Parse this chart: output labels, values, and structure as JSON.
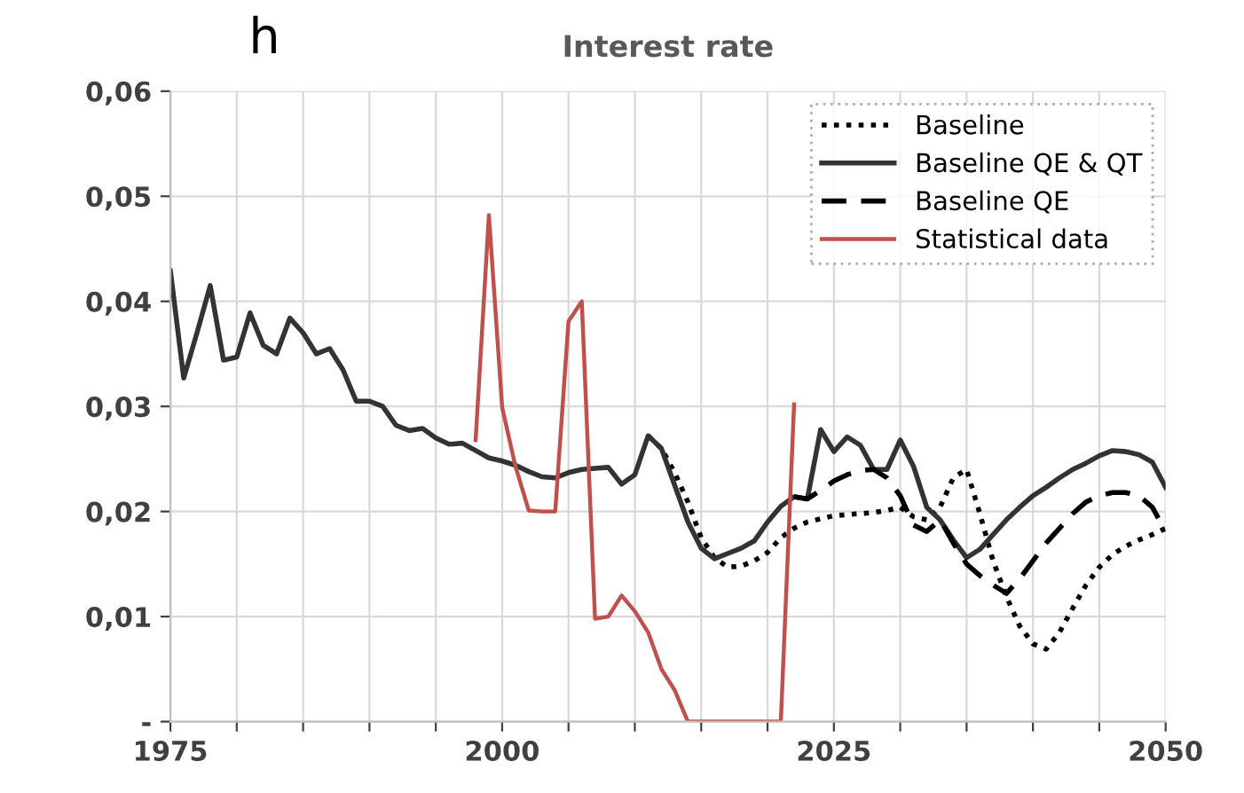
{
  "chart_data": {
    "type": "line",
    "title": "Interest rate",
    "annotations": [
      "h"
    ],
    "xlim": [
      1975,
      2050
    ],
    "xticks": [
      1975,
      {
        "value": 1980,
        "label": null
      },
      {
        "value": 1985,
        "label": null
      },
      {
        "value": 1990,
        "label": null
      },
      {
        "value": 1995,
        "label": null
      },
      2000,
      {
        "value": 2005,
        "label": null
      },
      {
        "value": 2010,
        "label": null
      },
      {
        "value": 2015,
        "label": null
      },
      {
        "value": 2020,
        "label": null
      },
      2025,
      {
        "value": 2030,
        "label": null
      },
      {
        "value": 2035,
        "label": null
      },
      {
        "value": 2040,
        "label": null
      },
      {
        "value": 2045,
        "label": null
      },
      2050
    ],
    "ylim": [
      0,
      0.06
    ],
    "yticks": [
      {
        "value": 0,
        "label": "-"
      },
      {
        "value": 0.01,
        "label": "0,01"
      },
      {
        "value": 0.02,
        "label": "0,02"
      },
      {
        "value": 0.03,
        "label": "0,03"
      },
      {
        "value": 0.04,
        "label": "0,04"
      },
      {
        "value": 0.05,
        "label": "0,05"
      },
      {
        "value": 0.06,
        "label": "0,06"
      }
    ],
    "grid": true,
    "legend": "top right",
    "marker": "none",
    "series": [
      {
        "name": "Baseline",
        "color": "#000000",
        "line_style": "dotted",
        "x": [
          2011,
          2012,
          2013,
          2014,
          2015,
          2016,
          2017,
          2018,
          2019,
          2020,
          2021,
          2022,
          2023,
          2024,
          2025,
          2026,
          2027,
          2028,
          2029,
          2030,
          2031,
          2032,
          2033,
          2034,
          2035,
          2036,
          2037,
          2038,
          2039,
          2040,
          2041,
          2042,
          2043,
          2044,
          2045,
          2046,
          2047,
          2048,
          2049,
          2050
        ],
        "values": [
          0.0272,
          0.026,
          0.0237,
          0.0209,
          0.0175,
          0.0156,
          0.0147,
          0.0148,
          0.0153,
          0.0161,
          0.0175,
          0.0184,
          0.019,
          0.0193,
          0.0196,
          0.0197,
          0.0198,
          0.0199,
          0.0201,
          0.0204,
          0.0195,
          0.0192,
          0.0204,
          0.0232,
          0.024,
          0.0198,
          0.0153,
          0.0119,
          0.0091,
          0.0074,
          0.0069,
          0.0085,
          0.0108,
          0.013,
          0.0147,
          0.0159,
          0.0167,
          0.0173,
          0.0178,
          0.0184
        ]
      },
      {
        "name": "Baseline QE & QT",
        "color": "#333333",
        "line_style": "solid",
        "x": [
          1975,
          1976,
          1977,
          1978,
          1979,
          1980,
          1981,
          1982,
          1983,
          1984,
          1985,
          1986,
          1987,
          1988,
          1989,
          1990,
          1991,
          1992,
          1993,
          1994,
          1995,
          1996,
          1997,
          1998,
          1999,
          2000,
          2001,
          2002,
          2003,
          2004,
          2005,
          2006,
          2007,
          2008,
          2009,
          2010,
          2011,
          2012,
          2013,
          2014,
          2015,
          2016,
          2017,
          2018,
          2019,
          2020,
          2021,
          2022,
          2023,
          2024,
          2025,
          2026,
          2027,
          2028,
          2029,
          2030,
          2031,
          2032,
          2033,
          2034,
          2035,
          2036,
          2037,
          2038,
          2039,
          2040,
          2041,
          2042,
          2043,
          2044,
          2045,
          2046,
          2047,
          2048,
          2049,
          2050
        ],
        "values": [
          0.0429,
          0.0327,
          0.037,
          0.0415,
          0.0344,
          0.0347,
          0.0389,
          0.0358,
          0.035,
          0.0384,
          0.037,
          0.035,
          0.0355,
          0.0335,
          0.0305,
          0.0305,
          0.03,
          0.0282,
          0.0277,
          0.0279,
          0.027,
          0.0264,
          0.0265,
          0.0258,
          0.0251,
          0.0248,
          0.0244,
          0.0238,
          0.0233,
          0.0232,
          0.0237,
          0.024,
          0.0241,
          0.0242,
          0.0226,
          0.0235,
          0.0272,
          0.026,
          0.0225,
          0.019,
          0.0165,
          0.0155,
          0.016,
          0.0165,
          0.0172,
          0.019,
          0.0205,
          0.0214,
          0.0212,
          0.0278,
          0.0257,
          0.0271,
          0.0263,
          0.024,
          0.024,
          0.0268,
          0.0243,
          0.0204,
          0.0192,
          0.0173,
          0.0156,
          0.0164,
          0.0178,
          0.0192,
          0.0204,
          0.0215,
          0.0223,
          0.0232,
          0.024,
          0.0246,
          0.0253,
          0.0258,
          0.0257,
          0.0254,
          0.0247,
          0.0223
        ]
      },
      {
        "name": "Baseline QE",
        "color": "#000000",
        "line_style": "dashed",
        "x": [
          2022,
          2023,
          2024,
          2025,
          2026,
          2027,
          2028,
          2029,
          2030,
          2031,
          2032,
          2033,
          2034,
          2035,
          2036,
          2037,
          2038,
          2039,
          2040,
          2041,
          2042,
          2043,
          2044,
          2045,
          2046,
          2047,
          2048,
          2049,
          2050
        ],
        "values": [
          0.0214,
          0.0212,
          0.022,
          0.0229,
          0.0235,
          0.0239,
          0.024,
          0.0232,
          0.0215,
          0.0187,
          0.0181,
          0.0192,
          0.017,
          0.015,
          0.0139,
          0.013,
          0.0122,
          0.0136,
          0.0153,
          0.017,
          0.0184,
          0.0198,
          0.0209,
          0.0215,
          0.0218,
          0.0218,
          0.0215,
          0.0204,
          0.0181
        ]
      },
      {
        "name": "Statistical data",
        "color": "#c0504d",
        "line_style": "solid",
        "x": [
          1998,
          1999,
          2000,
          2001,
          2002,
          2003,
          2004,
          2005,
          2006,
          2007,
          2008,
          2009,
          2010,
          2011,
          2012,
          2013,
          2014,
          2015,
          2016,
          2017,
          2018,
          2019,
          2020,
          2021,
          2022
        ],
        "values": [
          0.0268,
          0.0482,
          0.0299,
          0.0243,
          0.0201,
          0.02,
          0.02,
          0.0381,
          0.04,
          0.0098,
          0.01,
          0.012,
          0.0105,
          0.0085,
          0.005,
          0.003,
          0,
          0,
          0,
          0,
          0,
          0,
          0,
          0,
          0.0302
        ]
      }
    ]
  }
}
